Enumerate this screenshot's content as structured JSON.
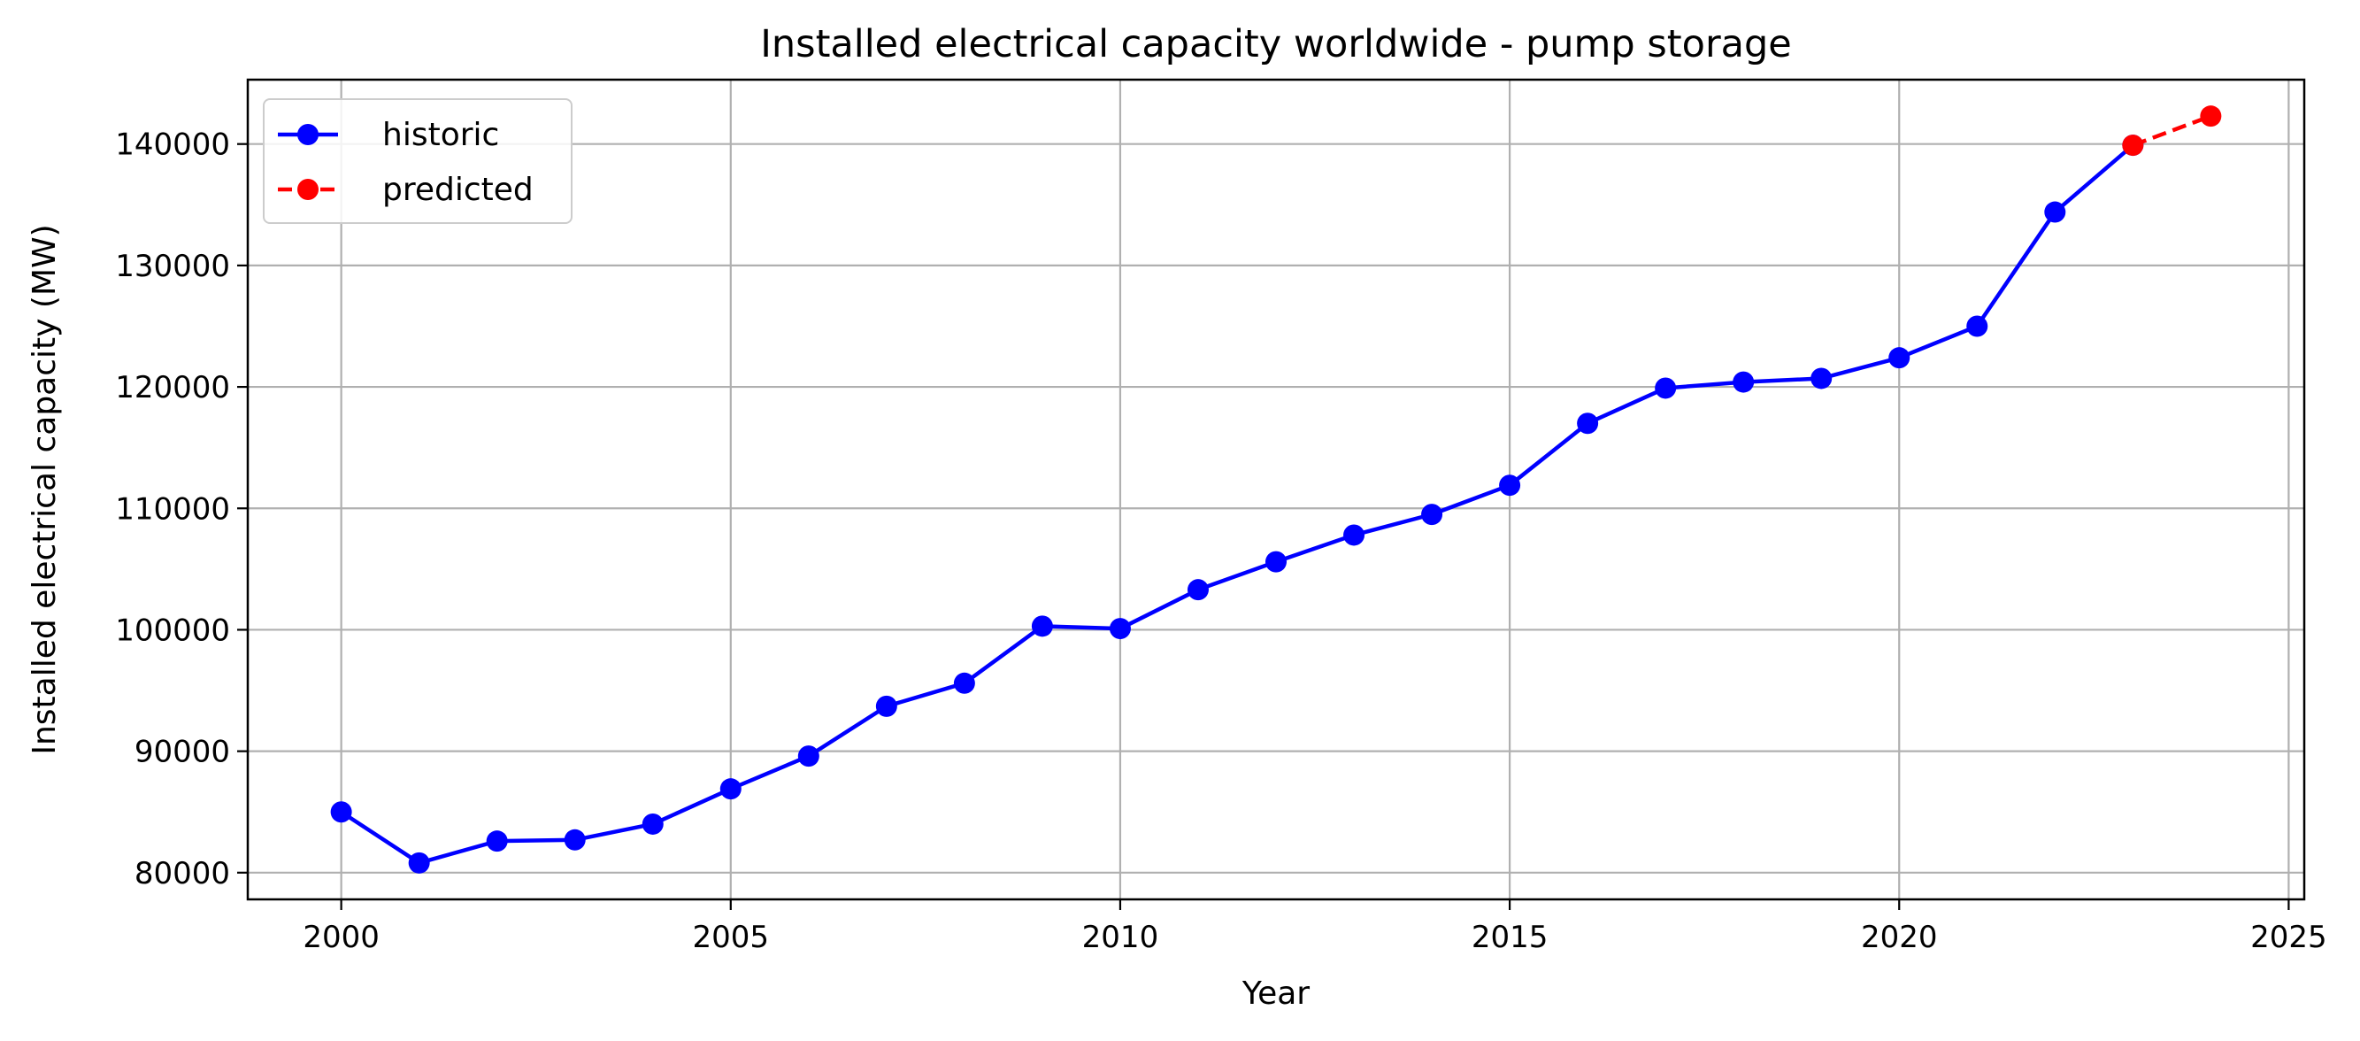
{
  "chart_data": {
    "type": "line",
    "title": "Installed electrical capacity worldwide - pump storage",
    "xlabel": "Year",
    "ylabel": "Installed electrical capacity (MW)",
    "xlim": [
      1998.8,
      2025.2
    ],
    "ylim": [
      77800,
      145300
    ],
    "xticks": [
      2000,
      2005,
      2010,
      2015,
      2020,
      2025
    ],
    "xtick_labels": [
      "2000",
      "2005",
      "2010",
      "2015",
      "2020",
      "2025"
    ],
    "yticks": [
      80000,
      90000,
      100000,
      110000,
      120000,
      130000,
      140000
    ],
    "ytick_labels": [
      "80000",
      "90000",
      "100000",
      "110000",
      "120000",
      "130000",
      "140000"
    ],
    "grid": true,
    "legend_position": "top-left",
    "series": [
      {
        "name": "historic",
        "color": "#0000ff",
        "line_style": "solid",
        "marker": "circle",
        "x": [
          2000,
          2001,
          2002,
          2003,
          2004,
          2005,
          2006,
          2007,
          2008,
          2009,
          2010,
          2011,
          2012,
          2013,
          2014,
          2015,
          2016,
          2017,
          2018,
          2019,
          2020,
          2021,
          2022,
          2023
        ],
        "y": [
          85000,
          80800,
          82600,
          82700,
          84000,
          86900,
          89600,
          93700,
          95600,
          100300,
          100100,
          103300,
          105600,
          107800,
          109500,
          111900,
          117000,
          119900,
          120400,
          120700,
          122400,
          125000,
          134400,
          139900
        ]
      },
      {
        "name": "predicted",
        "color": "#ff0000",
        "line_style": "dashed",
        "marker": "circle",
        "x": [
          2023,
          2024
        ],
        "y": [
          139900,
          142300
        ]
      }
    ]
  }
}
